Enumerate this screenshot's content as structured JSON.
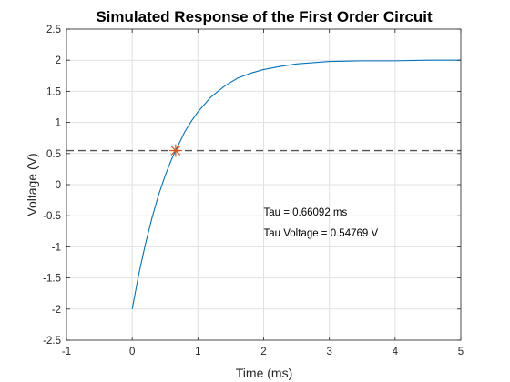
{
  "chart_data": {
    "type": "line",
    "title": "Simulated Response of the First Order Circuit",
    "xlabel": "Time (ms)",
    "ylabel": "Voltage (V)",
    "xlim": [
      -1,
      5
    ],
    "ylim": [
      -2.5,
      2.5
    ],
    "x_ticks": [
      -1,
      0,
      1,
      2,
      3,
      4,
      5
    ],
    "y_ticks": [
      -2.5,
      -2,
      -1.5,
      -1,
      -0.5,
      0,
      0.5,
      1,
      1.5,
      2,
      2.5
    ],
    "grid": true,
    "series": [
      {
        "style": "solid",
        "color": "#0072BD",
        "x": [
          0,
          0.1,
          0.2,
          0.3,
          0.4,
          0.5,
          0.6,
          0.66092,
          0.8,
          0.9,
          1.0,
          1.2,
          1.4,
          1.6,
          1.8,
          2.0,
          2.25,
          2.5,
          2.75,
          3.0,
          3.5,
          4.0,
          4.5,
          5.0
        ],
        "y": [
          -2,
          -1.44,
          -0.96,
          -0.54,
          -0.17,
          0.14,
          0.41,
          0.54769,
          0.85,
          1.02,
          1.17,
          1.41,
          1.58,
          1.71,
          1.79,
          1.85,
          1.9,
          1.94,
          1.96,
          1.98,
          1.99,
          1.99,
          2.0,
          2.0
        ]
      },
      {
        "style": "dashed",
        "color": "#555555",
        "x": [
          -1,
          5
        ],
        "y": [
          0.54769,
          0.54769
        ]
      }
    ],
    "marker": {
      "symbol": "asterisk",
      "color": "#D95319",
      "x": 0.66092,
      "y": 0.54769
    },
    "annotations": [
      {
        "text": "Tau = 0.66092 ms",
        "x": 2.0,
        "y": -0.5
      },
      {
        "text": "Tau Voltage = 0.54769 V",
        "x": 2.0,
        "y": -0.83
      }
    ]
  }
}
